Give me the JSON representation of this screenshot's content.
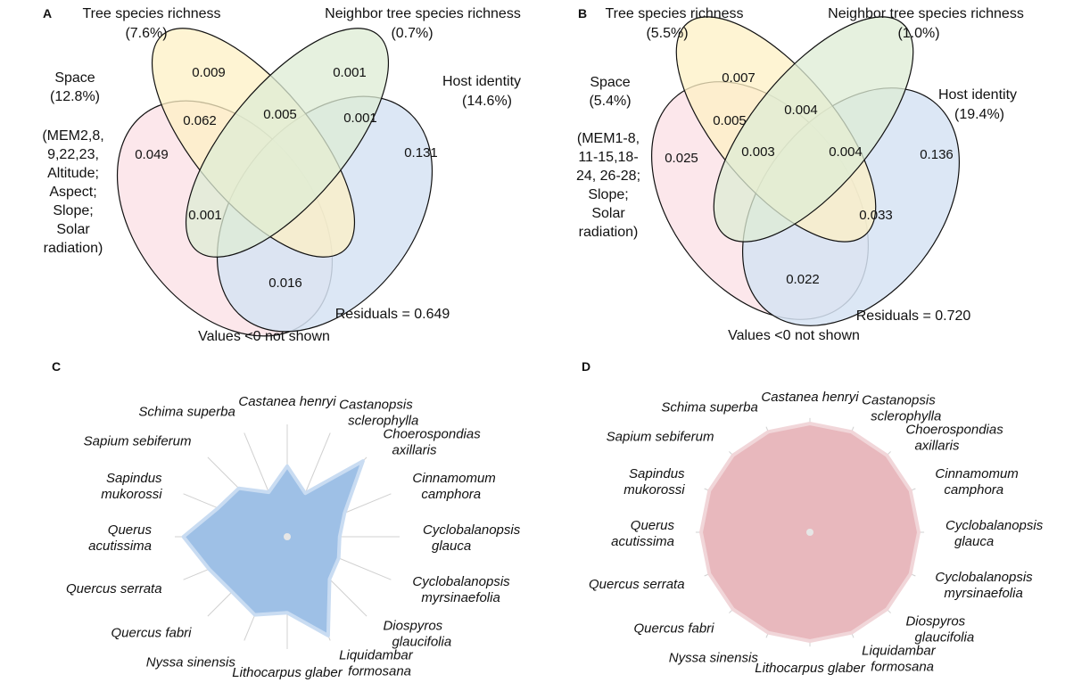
{
  "figure": {
    "panel_letters": {
      "A": "A",
      "B": "B",
      "C": "C",
      "D": "D"
    },
    "colors": {
      "space_fill": "#fbe3e8",
      "tree_fill": "#fdf0c4",
      "neighbor_fill": "#deecd4",
      "host_fill": "#d6e3f3",
      "radar_c_fill": "#9ec0e6",
      "radar_c_stroke": "#c9dcf2",
      "radar_d_fill": "#e8b8bd",
      "radar_d_stroke": "#f1d6d9",
      "spoke": "#d0d0d0"
    }
  },
  "venn_a": {
    "labels": {
      "tree_title": "Tree species richness",
      "tree_pct": "(7.6%)",
      "neighbor_title": "Neighbor tree species richness",
      "neighbor_pct": "(0.7%)",
      "space_title": "Space",
      "space_pct": "(12.8%)",
      "space_detail": [
        "(MEM2,8,",
        "9,22,23,",
        "Altitude;",
        "Aspect;",
        "Slope;",
        "Solar",
        "radiation)"
      ],
      "host_title": "Host identity",
      "host_pct": "(14.6%)",
      "residuals": "Residuals = 0.649",
      "note": "Values <0 not shown"
    },
    "values": {
      "tree_only": "0.009",
      "neighbor_only": "0.001",
      "space_tree": "0.062",
      "tree_neighbor": "0.005",
      "neighbor_host": "0.001",
      "space_only": "0.049",
      "host_only": "0.131",
      "space_neighbor": "0.001",
      "space_host": "0.016"
    }
  },
  "venn_b": {
    "labels": {
      "tree_title": "Tree species richness",
      "tree_pct": "(5.5%)",
      "neighbor_title": "Neighbor tree species richness",
      "neighbor_pct": "(1.0%)",
      "space_title": "Space",
      "space_pct": "(5.4%)",
      "space_detail": [
        "(MEM1-8,",
        "11-15,18-",
        "24, 26-28;",
        "Slope;",
        "Solar",
        "radiation)"
      ],
      "host_title": "Host identity",
      "host_pct": "(19.4%)",
      "residuals": "Residuals = 0.720",
      "note": "Values <0 not shown"
    },
    "values": {
      "tree_only": "0.007",
      "space_tree": "0.005",
      "tree_neighbor": "0.004",
      "space_only": "0.025",
      "space_tree_neighbor": "0.003",
      "neighbor_host": "0.004",
      "host_only": "0.136",
      "neighbor_host_low": "0.033",
      "space_host": "0.022"
    }
  },
  "chart_data": [
    {
      "type": "radar",
      "panel": "C",
      "categories": [
        "Castanea henryi",
        "Castanopsis sclerophylla",
        "Choerospondias axillaris",
        "Cinnamomum camphora",
        "Cyclobalanopsis glauca",
        "Cyclobalanopsis myrsinaefolia",
        "Diospyros glaucifolia",
        "Liquidambar formosana",
        "Lithocarpus glaber",
        "Nyssa sinensis",
        "Quercus fabri",
        "Quercus serrata",
        "Querus acutissima",
        "Sapindus mukorossi",
        "Sapium sebiferum",
        "Schima superba"
      ],
      "values": [
        0.66,
        0.44,
        1.0,
        0.58,
        0.49,
        0.52,
        0.56,
        1.0,
        0.71,
        0.79,
        0.73,
        0.79,
        0.97,
        0.7,
        0.64,
        0.45
      ],
      "ylim": [
        0,
        1
      ]
    },
    {
      "type": "radar",
      "panel": "D",
      "categories": [
        "Castanea henryi",
        "Castanopsis sclerophylla",
        "Choerospondias axillaris",
        "Cinnamomum camphora",
        "Cyclobalanopsis glauca",
        "Cyclobalanopsis myrsinaefolia",
        "Diospyros glaucifolia",
        "Liquidambar formosana",
        "Lithocarpus glaber",
        "Nyssa sinensis",
        "Quercus fabri",
        "Quercus serrata",
        "Querus acutissima",
        "Sapindus mukorossi",
        "Sapium sebiferum",
        "Schima superba"
      ],
      "values": [
        1,
        1,
        1,
        1,
        1,
        1,
        1,
        1,
        1,
        1,
        1,
        1,
        1,
        1,
        1,
        1
      ],
      "ylim": [
        0,
        1
      ]
    }
  ]
}
